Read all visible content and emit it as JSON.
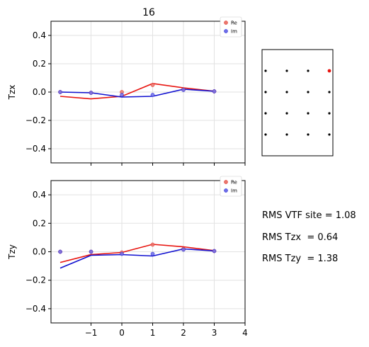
{
  "title": "16",
  "colors": {
    "re": "#e8140f",
    "im": "#1010d0",
    "re_point": "#e8776d",
    "im_point": "#6d6de8",
    "grid": "#e2e2e2"
  },
  "chart_data": [
    {
      "type": "line",
      "ylabel": "Tzx",
      "xlim": [
        -2.3,
        4
      ],
      "ylim": [
        -0.5,
        0.5
      ],
      "xticks": [
        -1,
        0,
        1,
        2,
        3,
        4
      ],
      "xtick_labels_visible": false,
      "yticks": [
        0.4,
        0.2,
        0.0,
        -0.2,
        -0.4
      ],
      "ytick_labels": [
        "0.4",
        "0.2",
        "0.0",
        "−0.2",
        "−0.4"
      ],
      "legend": [
        "Re",
        "Im"
      ],
      "legend_position": "top-right",
      "grid": true,
      "series": [
        {
          "name": "Re",
          "line": {
            "x": [
              -2,
              -1,
              0,
              1,
              2,
              3
            ],
            "y": [
              -0.03,
              -0.048,
              -0.03,
              0.06,
              0.03,
              0.006
            ]
          },
          "points": {
            "x": [
              -2,
              -1,
              0,
              1,
              2,
              3
            ],
            "y": [
              0.0,
              -0.005,
              0.0,
              0.05,
              0.02,
              0.005
            ]
          }
        },
        {
          "name": "Im",
          "line": {
            "x": [
              -2,
              -1,
              0,
              1,
              2,
              3
            ],
            "y": [
              0.0,
              -0.005,
              -0.035,
              -0.03,
              0.02,
              0.006
            ]
          },
          "points": {
            "x": [
              -2,
              -1,
              0,
              1,
              2,
              3
            ],
            "y": [
              0.0,
              -0.005,
              -0.02,
              -0.02,
              0.015,
              0.005
            ]
          }
        }
      ]
    },
    {
      "type": "line",
      "ylabel": "Tzy",
      "xlim": [
        -2.3,
        4
      ],
      "ylim": [
        -0.5,
        0.5
      ],
      "xticks": [
        -1,
        0,
        1,
        2,
        3,
        4
      ],
      "xtick_labels": [
        "−1",
        "0",
        "1",
        "2",
        "3",
        "4"
      ],
      "xtick_labels_visible": true,
      "yticks": [
        0.4,
        0.2,
        0.0,
        -0.2,
        -0.4
      ],
      "ytick_labels": [
        "0.4",
        "0.2",
        "0.0",
        "−0.2",
        "−0.4"
      ],
      "legend": [
        "Re",
        "Im"
      ],
      "legend_position": "top-right",
      "grid": true,
      "series": [
        {
          "name": "Re",
          "line": {
            "x": [
              -2,
              -1,
              0,
              1,
              2,
              3
            ],
            "y": [
              -0.075,
              -0.02,
              -0.005,
              0.052,
              0.035,
              0.008
            ]
          },
          "points": {
            "x": [
              -2,
              -1,
              0,
              1,
              2,
              3
            ],
            "y": [
              0.0,
              0.0,
              -0.005,
              0.05,
              0.02,
              0.005
            ]
          }
        },
        {
          "name": "Im",
          "line": {
            "x": [
              -2,
              -1,
              0,
              1,
              2,
              3
            ],
            "y": [
              -0.115,
              -0.025,
              -0.02,
              -0.03,
              0.02,
              0.006
            ]
          },
          "points": {
            "x": [
              -2,
              -1,
              0,
              1,
              2,
              3
            ],
            "y": [
              0.0,
              0.0,
              -0.015,
              -0.015,
              0.015,
              0.005
            ]
          }
        }
      ]
    }
  ],
  "site_map": {
    "columns": 4,
    "rows": 4,
    "highlight": {
      "row": 0,
      "col": 3
    }
  },
  "rms": {
    "site": "RMS VTF site = 1.08",
    "tzx": "RMS Tzx  = 0.64",
    "tzy": "RMS Tzy  = 1.38"
  }
}
